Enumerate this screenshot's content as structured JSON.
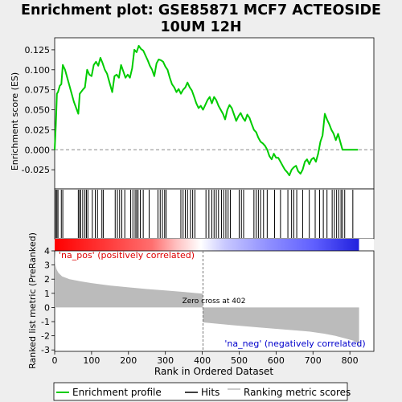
{
  "title_line1": "Enrichment plot: GSE85871 MCF7 ACTEOSIDE",
  "title_line2": "10UM 12H",
  "colors": {
    "enrichment": "#00cc00",
    "hits": "#000000",
    "ranking_fill": "#bbbbbb",
    "pos_label": "#dd0000",
    "neg_label": "#0000cc",
    "background": "#eeeeee",
    "panel": "#ffffff"
  },
  "legend": {
    "enrichment_label": "Enrichment profile",
    "hits_label": "Hits",
    "ranking_label": "Ranking metric scores",
    "placement": "bottom"
  },
  "annotations": {
    "pos_label": "'na_pos' (positively correlated)",
    "neg_label": "'na_neg' (negatively correlated)",
    "zero_cross": "Zero cross at 402"
  },
  "chart_data": [
    {
      "type": "line",
      "name": "es-panel",
      "ylabel": "Enrichment score (ES)",
      "xlim": [
        0,
        865
      ],
      "ylim": [
        -0.049,
        0.14
      ],
      "yticks": [
        0.125,
        0.1,
        0.075,
        0.05,
        0.025,
        0.0,
        -0.025
      ],
      "ytick_labels": [
        "0.125",
        "0.100",
        "0.075",
        "0.050",
        "0.025",
        "0.000",
        "-0.025"
      ],
      "grid": false,
      "series": [
        {
          "label": "Enrichment profile",
          "x": [
            0,
            3,
            6,
            9,
            14,
            18,
            22,
            28,
            40,
            52,
            64,
            68,
            76,
            82,
            88,
            94,
            100,
            106,
            112,
            118,
            124,
            130,
            136,
            142,
            150,
            156,
            162,
            168,
            174,
            180,
            186,
            192,
            198,
            204,
            210,
            216,
            222,
            228,
            234,
            240,
            246,
            252,
            258,
            264,
            270,
            276,
            282,
            288,
            294,
            300,
            306,
            312,
            318,
            324,
            330,
            336,
            342,
            348,
            354,
            360,
            366,
            372,
            378,
            384,
            390,
            396,
            402,
            408,
            414,
            420,
            426,
            432,
            438,
            444,
            450,
            456,
            462,
            468,
            474,
            480,
            486,
            492,
            498,
            504,
            510,
            516,
            522,
            528,
            534,
            540,
            546,
            552,
            558,
            564,
            570,
            576,
            582,
            588,
            594,
            600,
            606,
            612,
            618,
            624,
            630,
            636,
            642,
            648,
            654,
            660,
            666,
            672,
            678,
            684,
            690,
            696,
            702,
            708,
            714,
            720,
            726,
            732,
            738,
            744,
            750,
            756,
            762,
            768,
            774,
            780,
            786,
            792,
            798,
            804,
            810,
            816,
            822
          ],
          "y": [
            0.0,
            0.03,
            0.07,
            0.072,
            0.08,
            0.082,
            0.106,
            0.1,
            0.08,
            0.06,
            0.045,
            0.07,
            0.075,
            0.078,
            0.1,
            0.094,
            0.092,
            0.106,
            0.11,
            0.105,
            0.115,
            0.108,
            0.1,
            0.095,
            0.082,
            0.072,
            0.092,
            0.094,
            0.09,
            0.106,
            0.098,
            0.09,
            0.094,
            0.09,
            0.102,
            0.125,
            0.122,
            0.13,
            0.126,
            0.124,
            0.118,
            0.112,
            0.105,
            0.1,
            0.092,
            0.108,
            0.113,
            0.112,
            0.11,
            0.104,
            0.1,
            0.09,
            0.082,
            0.078,
            0.072,
            0.076,
            0.07,
            0.075,
            0.078,
            0.084,
            0.078,
            0.074,
            0.066,
            0.058,
            0.052,
            0.055,
            0.05,
            0.056,
            0.062,
            0.066,
            0.058,
            0.066,
            0.062,
            0.055,
            0.05,
            0.045,
            0.038,
            0.05,
            0.056,
            0.052,
            0.044,
            0.036,
            0.042,
            0.046,
            0.04,
            0.036,
            0.044,
            0.04,
            0.032,
            0.025,
            0.022,
            0.015,
            0.01,
            0.008,
            0.005,
            0.0,
            -0.008,
            -0.012,
            -0.005,
            -0.01,
            -0.01,
            -0.015,
            -0.02,
            -0.025,
            -0.028,
            -0.032,
            -0.025,
            -0.022,
            -0.02,
            -0.027,
            -0.03,
            -0.025,
            -0.015,
            -0.012,
            -0.018,
            -0.012,
            -0.01,
            -0.015,
            -0.005,
            0.01,
            0.018,
            0.045,
            0.038,
            0.032,
            0.025,
            0.02,
            0.012,
            0.02,
            0.01,
            0.0,
            0.0,
            0.0,
            0.0,
            0.0,
            0.0,
            0.0,
            0.0
          ]
        }
      ]
    },
    {
      "type": "bar",
      "name": "hits-panel",
      "series": [
        {
          "label": "Hits",
          "x": [
            3,
            6,
            9,
            18,
            22,
            64,
            68,
            70,
            76,
            82,
            86,
            90,
            102,
            110,
            116,
            128,
            132,
            164,
            170,
            176,
            182,
            190,
            206,
            212,
            218,
            222,
            226,
            232,
            240,
            256,
            280,
            286,
            292,
            298,
            302,
            342,
            348,
            354,
            360,
            368,
            374,
            380,
            410,
            418,
            426,
            432,
            438,
            444,
            452,
            458,
            464,
            470,
            476,
            500,
            506,
            512,
            540,
            546,
            552,
            558,
            566,
            576,
            596,
            612,
            632,
            642,
            648,
            656,
            672,
            690,
            706,
            718,
            728,
            738,
            752,
            758,
            764,
            770,
            776,
            780,
            786,
            808
          ]
        }
      ]
    },
    {
      "type": "area",
      "name": "ranking-panel",
      "ylabel": "Ranked list metric (PreRanked)",
      "xlabel": "Rank in Ordered Dataset",
      "xlim": [
        0,
        865
      ],
      "ylim": [
        -3.1,
        4.0
      ],
      "yticks": [
        4,
        3,
        2,
        1,
        0,
        -1,
        -2,
        -3
      ],
      "xticks": [
        0,
        100,
        200,
        300,
        400,
        500,
        600,
        700,
        800
      ],
      "zero_cross": 402,
      "series": [
        {
          "label": "Ranking metric scores",
          "x": [
            0,
            2,
            5,
            10,
            20,
            40,
            70,
            100,
            150,
            200,
            250,
            300,
            350,
            401,
            402,
            420,
            480,
            550,
            620,
            690,
            730,
            760,
            790,
            810,
            820,
            825
          ],
          "y": [
            3.9,
            3.0,
            2.7,
            2.45,
            2.2,
            2.0,
            1.85,
            1.72,
            1.55,
            1.42,
            1.3,
            1.2,
            1.1,
            0.98,
            -1.05,
            -1.1,
            -1.25,
            -1.4,
            -1.55,
            -1.7,
            -1.85,
            -2.0,
            -2.2,
            -2.35,
            -2.5,
            -2.9
          ]
        }
      ]
    }
  ]
}
